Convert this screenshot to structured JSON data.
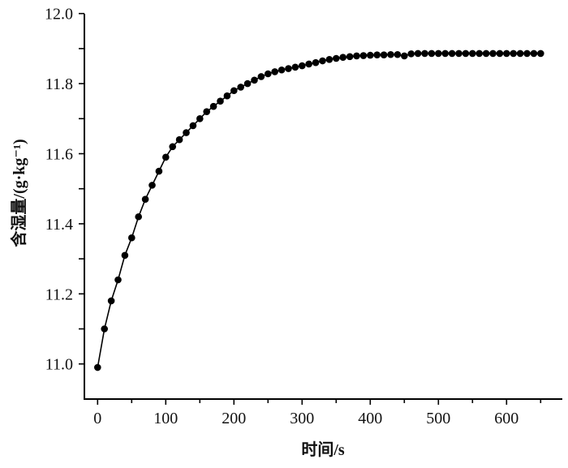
{
  "chart_data": {
    "type": "line",
    "title": "",
    "xlabel": "时间/s",
    "ylabel": "含湿量/(g·kg⁻¹)",
    "xlim": [
      -20,
      680
    ],
    "ylim": [
      10.9,
      12.0
    ],
    "x_ticks": [
      "0",
      "100",
      "200",
      "300",
      "400",
      "500",
      "600"
    ],
    "y_ticks": [
      "11.0",
      "11.2",
      "11.4",
      "11.6",
      "11.8",
      "12.0"
    ],
    "grid": false,
    "legend": "none",
    "series": [
      {
        "name": "含湿量",
        "marker": "filled-circle",
        "color": "#000000",
        "x": [
          0,
          10,
          20,
          30,
          40,
          50,
          60,
          70,
          80,
          90,
          100,
          110,
          120,
          130,
          140,
          150,
          160,
          170,
          180,
          190,
          200,
          210,
          220,
          230,
          240,
          250,
          260,
          270,
          280,
          290,
          300,
          310,
          320,
          330,
          340,
          350,
          360,
          370,
          380,
          390,
          400,
          410,
          420,
          430,
          440,
          450,
          460,
          470,
          480,
          490,
          500,
          510,
          520,
          530,
          540,
          550,
          560,
          570,
          580,
          590,
          600,
          610,
          620,
          630,
          640,
          650
        ],
        "values": [
          10.99,
          11.1,
          11.18,
          11.24,
          11.31,
          11.36,
          11.42,
          11.47,
          11.51,
          11.55,
          11.59,
          11.62,
          11.64,
          11.66,
          11.68,
          11.7,
          11.72,
          11.735,
          11.75,
          11.765,
          11.78,
          11.79,
          11.8,
          11.81,
          11.82,
          11.828,
          11.834,
          11.839,
          11.843,
          11.847,
          11.851,
          11.856,
          11.86,
          11.865,
          11.869,
          11.872,
          11.875,
          11.877,
          11.879,
          11.88,
          11.881,
          11.882,
          11.882,
          11.883,
          11.883,
          11.879,
          11.885,
          11.886,
          11.886,
          11.886,
          11.886,
          11.886,
          11.886,
          11.886,
          11.886,
          11.886,
          11.886,
          11.886,
          11.886,
          11.886,
          11.886,
          11.886,
          11.886,
          11.886,
          11.886,
          11.886
        ]
      }
    ]
  }
}
